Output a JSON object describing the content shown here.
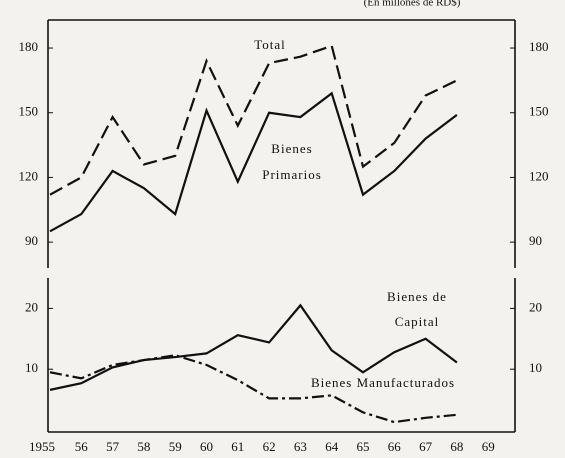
{
  "chart_data": [
    {
      "type": "line",
      "subtitle": "(En millones de RD$)",
      "ylim": [
        78,
        193
      ],
      "yticks": [
        90,
        120,
        150,
        180
      ],
      "series": [
        {
          "label": [
            "Total"
          ],
          "color": "#111",
          "dash": "14,6",
          "values": [
            112,
            120,
            148,
            126,
            130,
            174,
            144,
            173,
            176,
            181,
            125,
            136,
            158,
            165,
            null
          ]
        },
        {
          "label": [
            "Bienes",
            "Primarios"
          ],
          "color": "#111",
          "dash": "none",
          "values": [
            95,
            103,
            123,
            115,
            103,
            151,
            118,
            150,
            148,
            159,
            112,
            123,
            138,
            149,
            null
          ]
        }
      ]
    },
    {
      "type": "line",
      "categories": [
        "1955",
        "56",
        "57",
        "58",
        "59",
        "60",
        "61",
        "62",
        "63",
        "64",
        "65",
        "66",
        "67",
        "68",
        "69"
      ],
      "ylim": [
        0,
        25
      ],
      "yticks": [
        10,
        20
      ],
      "series": [
        {
          "label": [
            "Bienes de",
            "Capital"
          ],
          "color": "#111",
          "dash": "none",
          "values": [
            6.6,
            7.7,
            10.3,
            11.5,
            12,
            12.6,
            15.6,
            14.4,
            20.5,
            13.1,
            9.5,
            12.8,
            15,
            11.1,
            null
          ]
        },
        {
          "label": [
            "Bienes Manufacturados"
          ],
          "color": "#111",
          "dash": "12,4,3,4",
          "values": [
            9.5,
            8.5,
            10.7,
            11.5,
            12.3,
            10.7,
            8.2,
            5.2,
            5.2,
            5.7,
            2.9,
            1.3,
            2,
            2.5,
            null
          ]
        }
      ]
    }
  ]
}
